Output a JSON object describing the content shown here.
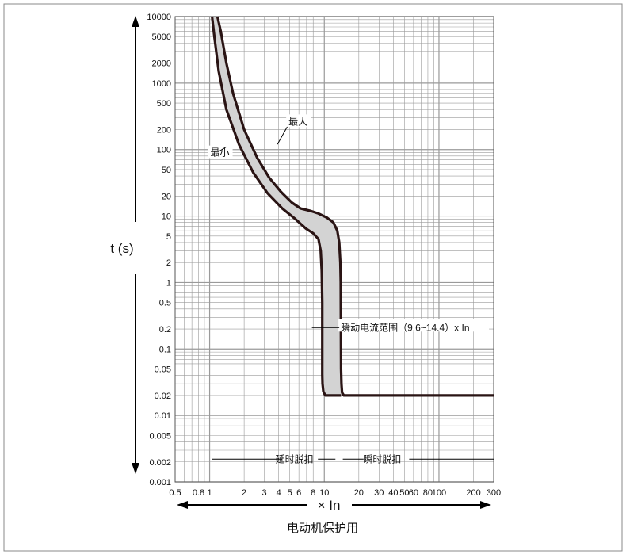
{
  "chart_data": {
    "type": "line",
    "title": "",
    "ylabel": "t (s)",
    "xlabel": "× In",
    "caption": "电动机保护用",
    "x_scale": "log",
    "y_scale": "log",
    "xlim": [
      0.5,
      300
    ],
    "ylim": [
      0.001,
      10000
    ],
    "grid": true,
    "x_ticks": [
      "0.5",
      "0.8",
      "1",
      "2",
      "3",
      "4",
      "5",
      "6",
      "8",
      "10",
      "20",
      "30",
      "40",
      "50",
      "60",
      "80",
      "100",
      "200",
      "300"
    ],
    "y_ticks": [
      "10000",
      "5000",
      "2000",
      "1000",
      "500",
      "200",
      "100",
      "50",
      "20",
      "10",
      "5",
      "2",
      "1",
      "0.5",
      "0.2",
      "0.1",
      "0.05",
      "0.02",
      "0.01",
      "0.005",
      "0.002",
      "0.001"
    ],
    "series": [
      {
        "name": "最大",
        "x": [
          1.17,
          1.25,
          1.4,
          1.6,
          2.0,
          2.6,
          3.3,
          4.2,
          5.2,
          6.2,
          7.5,
          8.8,
          10.5,
          12.0,
          13.0,
          13.5,
          13.8,
          13.9,
          13.95,
          14.0,
          14.1,
          14.3,
          14.8,
          16,
          300
        ],
        "y": [
          10000,
          6000,
          2000,
          700,
          200,
          75,
          38,
          23,
          16,
          13,
          12,
          11,
          9.5,
          8,
          6,
          4,
          2,
          1,
          0.2,
          0.05,
          0.03,
          0.022,
          0.02,
          0.02,
          0.02
        ]
      },
      {
        "name": "最小",
        "x": [
          1.05,
          1.1,
          1.2,
          1.4,
          1.8,
          2.4,
          3.2,
          4.3,
          5.6,
          6.9,
          8.0,
          8.9,
          9.3,
          9.5,
          9.6,
          9.6,
          9.6,
          9.65,
          9.8,
          10.2,
          11,
          14
        ],
        "y": [
          10000,
          5000,
          1500,
          400,
          120,
          45,
          22,
          13,
          9,
          6.5,
          5.5,
          4.5,
          3,
          1.5,
          0.5,
          0.1,
          0.04,
          0.03,
          0.023,
          0.02,
          0.02,
          0.02
        ]
      }
    ],
    "annotations": [
      {
        "text": "最大",
        "x": 4.8,
        "y": 250
      },
      {
        "text": "最小",
        "x": 1.0,
        "y": 85
      },
      {
        "text": "瞬动电流范围（9.6~14.4）x In",
        "x": 13.5,
        "y": 0.21
      },
      {
        "text": "延时脱扣",
        "x": 5.5,
        "y": 0.0022
      },
      {
        "text": "瞬时脱扣",
        "x": 30,
        "y": 0.0022
      }
    ]
  }
}
